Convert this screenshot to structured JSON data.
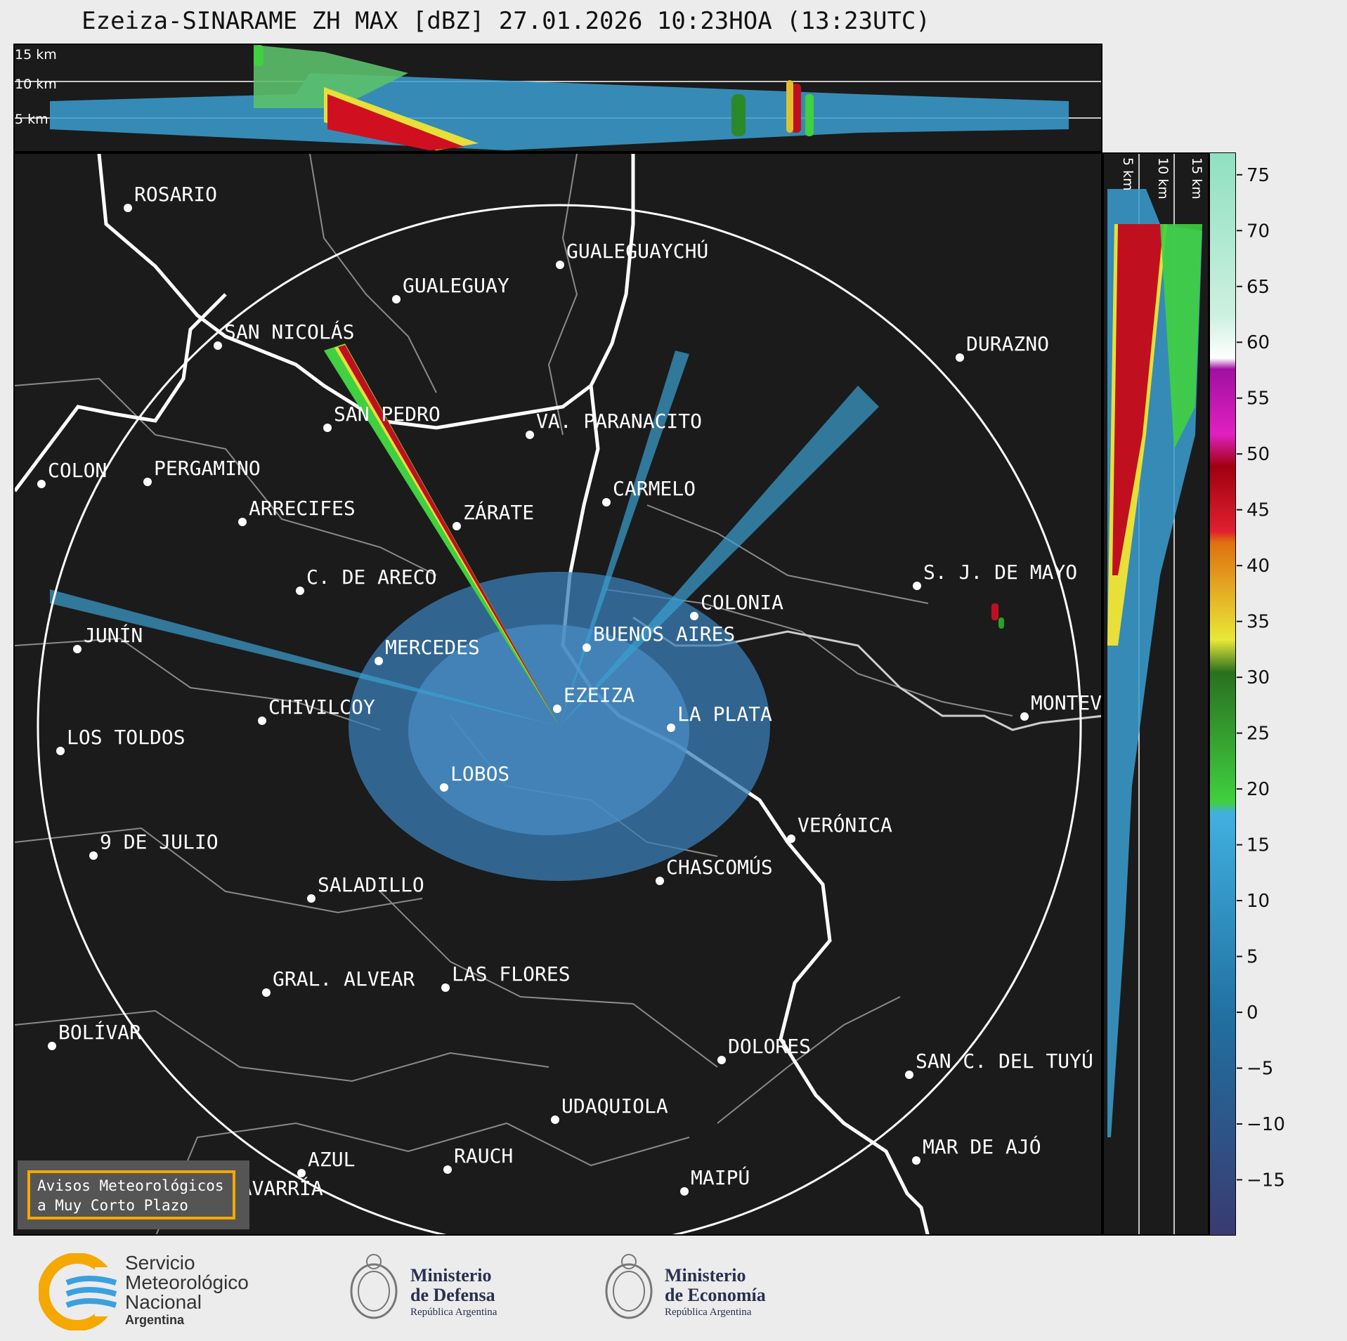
{
  "title": "Ezeiza-SINARAME ZH MAX [dBZ] 27.01.2026 10:23HOA (13:23UTC)",
  "top_panel": {
    "height_labels": [
      "15 km",
      "10 km",
      "5 km"
    ]
  },
  "side_panel": {
    "height_labels": [
      "5 km",
      "10 km",
      "15 km"
    ]
  },
  "colorbar": {
    "unit": "dBZ",
    "tick_labels": [
      "75",
      "70",
      "65",
      "60",
      "55",
      "50",
      "45",
      "40",
      "35",
      "30",
      "25",
      "20",
      "15",
      "10",
      "5",
      "0",
      "−5",
      "−10",
      "−15"
    ],
    "min": -20,
    "max": 77
  },
  "cities": [
    {
      "name": "ROSARIO"
    },
    {
      "name": "GUALEGUAYCHÚ"
    },
    {
      "name": "GUALEGUAY"
    },
    {
      "name": "SAN NICOLÁS"
    },
    {
      "name": "DURAZNO"
    },
    {
      "name": "SAN PEDRO"
    },
    {
      "name": "VA. PARANACITO"
    },
    {
      "name": "COLON"
    },
    {
      "name": "PERGAMINO"
    },
    {
      "name": "CARMELO"
    },
    {
      "name": "ARRECIFES"
    },
    {
      "name": "ZÁRATE"
    },
    {
      "name": "C. DE ARECO"
    },
    {
      "name": "S. J. DE MAYO"
    },
    {
      "name": "COLONIA"
    },
    {
      "name": "JUNÍN"
    },
    {
      "name": "BUENOS AIRES"
    },
    {
      "name": "MERCEDES"
    },
    {
      "name": "EZEIZA"
    },
    {
      "name": "MONTEV"
    },
    {
      "name": "CHIVILCOY"
    },
    {
      "name": "LA PLATA"
    },
    {
      "name": "LOS TOLDOS"
    },
    {
      "name": "LOBOS"
    },
    {
      "name": "VERÓNICA"
    },
    {
      "name": "9 DE JULIO"
    },
    {
      "name": "CHASCOMÚS"
    },
    {
      "name": "SALADILLO"
    },
    {
      "name": "GRAL. ALVEAR"
    },
    {
      "name": "LAS FLORES"
    },
    {
      "name": "BOLÍVAR"
    },
    {
      "name": "DOLORES"
    },
    {
      "name": "SAN C. DEL TUYÚ"
    },
    {
      "name": "UDAQUIOLA"
    },
    {
      "name": "MAR DE AJÓ"
    },
    {
      "name": "AZUL"
    },
    {
      "name": "RAUCH"
    },
    {
      "name": "MAIPÚ"
    },
    {
      "name": "OLAVARRÍA"
    }
  ],
  "warning_box": {
    "line1": "Avisos Meteorológicos",
    "line2": "a Muy Corto Plazo"
  },
  "logos": {
    "smn": {
      "line1": "Servicio",
      "line2": "Meteorológico",
      "line3": "Nacional",
      "line4": "Argentina"
    },
    "defensa": {
      "line1": "Ministerio",
      "line2": "de Defensa",
      "line3": "República Argentina"
    },
    "economia": {
      "line1": "Ministerio",
      "line2": "de Economía",
      "line3": "República Argentina"
    }
  },
  "colors": {
    "background": "#1b1b1b",
    "page": "#ececec",
    "accent_orange": "#f5a800"
  }
}
